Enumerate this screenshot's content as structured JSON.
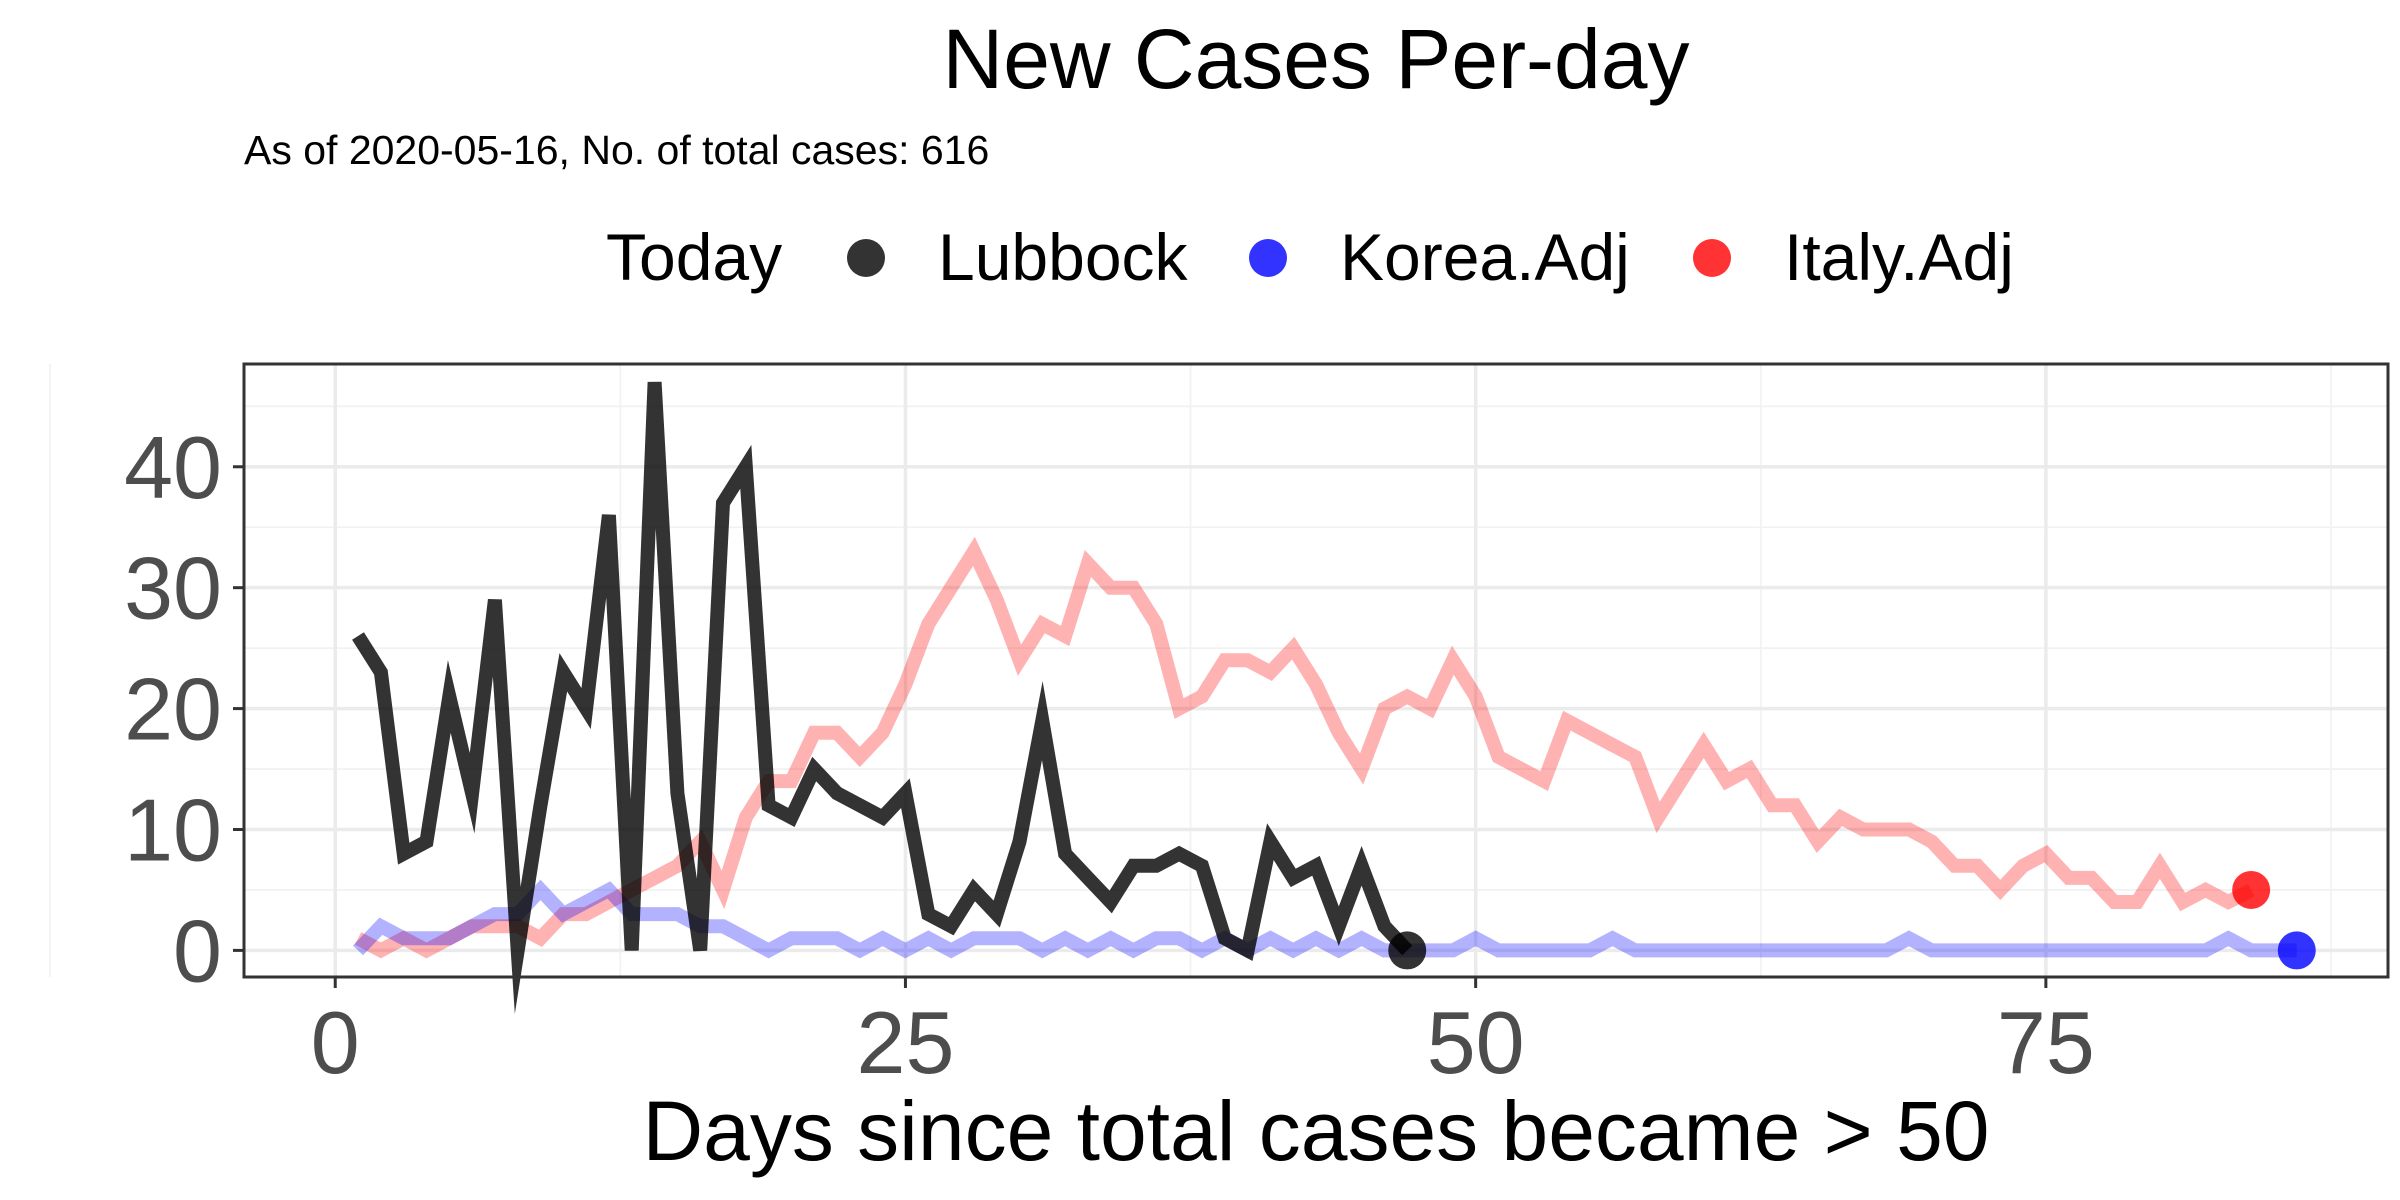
{
  "title": "New Cases Per-day",
  "subtitle": "As of 2020-05-16, No. of total cases: 616",
  "legend": {
    "title": "Today",
    "items": [
      {
        "label": "Lubbock",
        "color": "#000000"
      },
      {
        "label": "Korea.Adj",
        "color": "#0000ff"
      },
      {
        "label": "Italy.Adj",
        "color": "#ff0000"
      }
    ]
  },
  "chart_data": {
    "type": "line",
    "title": "New Cases Per-day",
    "subtitle": "As of 2020-05-16, No. of total cases: 616",
    "xlabel": "Days since total cases became > 50",
    "ylabel": "",
    "xlim": [
      -4,
      90
    ],
    "ylim": [
      -2.2,
      48.5
    ],
    "x_ticks": [
      0,
      25,
      50,
      75
    ],
    "y_ticks": [
      0,
      10,
      20,
      30,
      40
    ],
    "grid": true,
    "legend_position": "top",
    "series": [
      {
        "name": "Italy.Adj",
        "color": "#ff0000",
        "opacity": 0.3,
        "x": [
          1,
          2,
          3,
          4,
          5,
          6,
          7,
          8,
          9,
          10,
          11,
          12,
          13,
          14,
          15,
          16,
          17,
          18,
          19,
          20,
          21,
          22,
          23,
          24,
          25,
          26,
          27,
          28,
          29,
          30,
          31,
          32,
          33,
          34,
          35,
          36,
          37,
          38,
          39,
          40,
          41,
          42,
          43,
          44,
          45,
          46,
          47,
          48,
          49,
          50,
          51,
          52,
          53,
          54,
          55,
          56,
          57,
          58,
          59,
          60,
          61,
          62,
          63,
          64,
          65,
          66,
          67,
          68,
          69,
          70,
          71,
          72,
          73,
          74,
          75,
          76,
          77,
          78,
          79,
          80,
          81,
          82,
          83,
          84
        ],
        "values": [
          1,
          0,
          1,
          0,
          1,
          2,
          2,
          2,
          1,
          3,
          3,
          4,
          5,
          6,
          7,
          9,
          5,
          11,
          14,
          14,
          18,
          18,
          16,
          18,
          22,
          27,
          30,
          33,
          29,
          24,
          27,
          26,
          32,
          30,
          30,
          27,
          20,
          21,
          24,
          24,
          23,
          25,
          22,
          18,
          15,
          20,
          21,
          20,
          24,
          21,
          16,
          15,
          14,
          19,
          18,
          17,
          16,
          11,
          14,
          17,
          14,
          15,
          12,
          12,
          9,
          11,
          10,
          10,
          10,
          9,
          7,
          7,
          5,
          7,
          8,
          6,
          6,
          4,
          4,
          7,
          4,
          5,
          4,
          5
        ]
      },
      {
        "name": "Korea.Adj",
        "color": "#0000ff",
        "opacity": 0.3,
        "x": [
          1,
          2,
          3,
          4,
          5,
          6,
          7,
          8,
          9,
          10,
          11,
          12,
          13,
          14,
          15,
          16,
          17,
          18,
          19,
          20,
          21,
          22,
          23,
          24,
          25,
          26,
          27,
          28,
          29,
          30,
          31,
          32,
          33,
          34,
          35,
          36,
          37,
          38,
          39,
          40,
          41,
          42,
          43,
          44,
          45,
          46,
          47,
          48,
          49,
          50,
          51,
          52,
          53,
          54,
          55,
          56,
          57,
          58,
          59,
          60,
          61,
          62,
          63,
          64,
          65,
          66,
          67,
          68,
          69,
          70,
          71,
          72,
          73,
          74,
          75,
          76,
          77,
          78,
          79,
          80,
          81,
          82,
          83,
          84,
          85,
          86
        ],
        "values": [
          0,
          2,
          1,
          1,
          1,
          2,
          3,
          3,
          5,
          3,
          4,
          5,
          3,
          3,
          3,
          2,
          2,
          1,
          0,
          1,
          1,
          1,
          0,
          1,
          0,
          1,
          0,
          1,
          1,
          1,
          0,
          1,
          0,
          1,
          0,
          1,
          1,
          0,
          1,
          0,
          1,
          0,
          1,
          0,
          1,
          0,
          0,
          0,
          0,
          1,
          0,
          0,
          0,
          0,
          0,
          1,
          0,
          0,
          0,
          0,
          0,
          0,
          0,
          0,
          0,
          0,
          0,
          0,
          1,
          0,
          0,
          0,
          0,
          0,
          0,
          0,
          0,
          0,
          0,
          0,
          0,
          0,
          1,
          0,
          0,
          0
        ]
      },
      {
        "name": "Lubbock",
        "color": "#000000",
        "opacity": 0.8,
        "x": [
          1,
          2,
          3,
          4,
          5,
          6,
          7,
          8,
          9,
          10,
          11,
          12,
          13,
          14,
          15,
          16,
          17,
          18,
          19,
          20,
          21,
          22,
          23,
          24,
          25,
          26,
          27,
          28,
          29,
          30,
          31,
          32,
          33,
          34,
          35,
          36,
          37,
          38,
          39,
          40,
          41,
          42,
          43,
          44,
          45,
          46,
          47
        ],
        "values": [
          26,
          23,
          8,
          9,
          21,
          13,
          29,
          0,
          12,
          23,
          20,
          36,
          0,
          47,
          13,
          0,
          37,
          40,
          12,
          11,
          15,
          13,
          12,
          11,
          13,
          3,
          2,
          5,
          3,
          9,
          19,
          8,
          6,
          4,
          7,
          7,
          8,
          7,
          1,
          0,
          9,
          6,
          7,
          2,
          7,
          2,
          0
        ]
      }
    ],
    "today_points": [
      {
        "series": "Lubbock",
        "x": 47,
        "y": 0
      },
      {
        "series": "Korea.Adj",
        "x": 86,
        "y": 0
      },
      {
        "series": "Italy.Adj",
        "x": 84,
        "y": 5
      }
    ]
  }
}
